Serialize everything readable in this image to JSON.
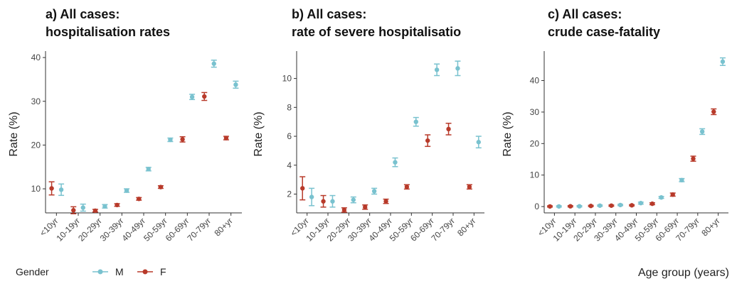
{
  "legend": {
    "title": "Gender",
    "placement": "bottom-left",
    "items": [
      {
        "label": "M",
        "color": "#79c2cf"
      },
      {
        "label": "F",
        "color": "#b83a2a"
      }
    ]
  },
  "shared_xlabel": "Age group (years)",
  "chart_data": [
    {
      "type": "scatter",
      "title": "a) All cases:",
      "subtitle": "hospitalisation rates",
      "xlabel": "",
      "ylabel": "Rate (%)",
      "categories": [
        "<10yr",
        "10-19yr",
        "20-29yr",
        "30-39yr",
        "40-49yr",
        "50-59yr",
        "60-69yr",
        "70-79yr",
        "80+yr"
      ],
      "ylim": [
        4.5,
        40.5
      ],
      "yticks": [
        10,
        20,
        30,
        40
      ],
      "series": [
        {
          "name": "M",
          "values": [
            9.8,
            5.7,
            6.0,
            9.6,
            14.5,
            21.2,
            31.0,
            38.6,
            33.8
          ],
          "err": [
            1.3,
            0.8,
            0.4,
            0.4,
            0.4,
            0.4,
            0.6,
            0.8,
            0.8
          ]
        },
        {
          "name": "F",
          "values": [
            10.1,
            5.1,
            5.0,
            6.3,
            7.7,
            10.4,
            21.3,
            31.1,
            21.6
          ],
          "err": [
            1.5,
            0.8,
            0.3,
            0.3,
            0.3,
            0.3,
            0.6,
            0.9,
            0.4
          ]
        }
      ]
    },
    {
      "type": "scatter",
      "title": "b) All cases:",
      "subtitle": "rate of severe hospitalisatio",
      "xlabel": "",
      "ylabel": "Rate (%)",
      "categories": [
        "<10yr",
        "10-19yr",
        "20-29yr",
        "30-39yr",
        "40-49yr",
        "50-59yr",
        "60-69yr",
        "70-79yr",
        "80+yr"
      ],
      "ylim": [
        0.7,
        11.6
      ],
      "yticks": [
        2,
        4,
        6,
        8,
        10
      ],
      "series": [
        {
          "name": "M",
          "values": [
            1.8,
            1.5,
            1.6,
            2.2,
            4.2,
            7.0,
            10.6,
            10.7,
            5.6
          ],
          "err": [
            0.6,
            0.4,
            0.2,
            0.2,
            0.3,
            0.3,
            0.4,
            0.5,
            0.4
          ]
        },
        {
          "name": "F",
          "values": [
            2.4,
            1.5,
            0.9,
            1.1,
            1.5,
            2.5,
            5.7,
            6.5,
            2.5
          ],
          "err": [
            0.8,
            0.4,
            0.15,
            0.15,
            0.15,
            0.15,
            0.4,
            0.4,
            0.15
          ]
        }
      ]
    },
    {
      "type": "scatter",
      "title": "c) All cases:",
      "subtitle": "crude case-fatality",
      "xlabel": "Age group (years)",
      "ylabel": "Rate (%)",
      "categories": [
        "<10yr",
        "10-19yr",
        "20-29yr",
        "30-39yr",
        "40-49yr",
        "50-59yr",
        "60-69yr",
        "70-79yr",
        "80+yr"
      ],
      "ylim": [
        -2,
        48
      ],
      "yticks": [
        0,
        10,
        20,
        30,
        40
      ],
      "series": [
        {
          "name": "M",
          "values": [
            0.05,
            0.1,
            0.3,
            0.5,
            1.1,
            2.9,
            8.4,
            23.8,
            46.0
          ],
          "err": [
            0.2,
            0.2,
            0.2,
            0.2,
            0.3,
            0.3,
            0.5,
            0.9,
            1.2
          ]
        },
        {
          "name": "F",
          "values": [
            0.05,
            0.1,
            0.2,
            0.3,
            0.4,
            0.9,
            3.8,
            15.2,
            30.1
          ],
          "err": [
            0.2,
            0.2,
            0.2,
            0.2,
            0.2,
            0.3,
            0.5,
            0.8,
            0.9
          ]
        }
      ]
    }
  ]
}
